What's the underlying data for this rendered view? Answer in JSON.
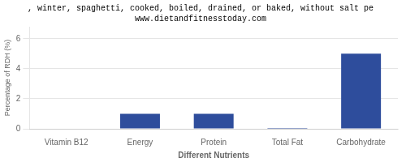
{
  "chart_data": {
    "type": "bar",
    "title": ", winter, spaghetti, cooked, boiled, drained, or baked, without salt pe",
    "subtitle": "www.dietandfitnesstoday.com",
    "categories": [
      "Vitamin B12",
      "Energy",
      "Protein",
      "Total Fat",
      "Carbohydrate"
    ],
    "values": [
      0.0,
      1.0,
      1.0,
      0.05,
      5.0
    ],
    "color": "#2e4d9c",
    "xlabel": "Different Nutrients",
    "ylabel": "Percentage of RDH (%)",
    "ylim": [
      0,
      6.8
    ],
    "yticks": [
      0,
      2,
      4,
      6
    ],
    "grid": true
  }
}
